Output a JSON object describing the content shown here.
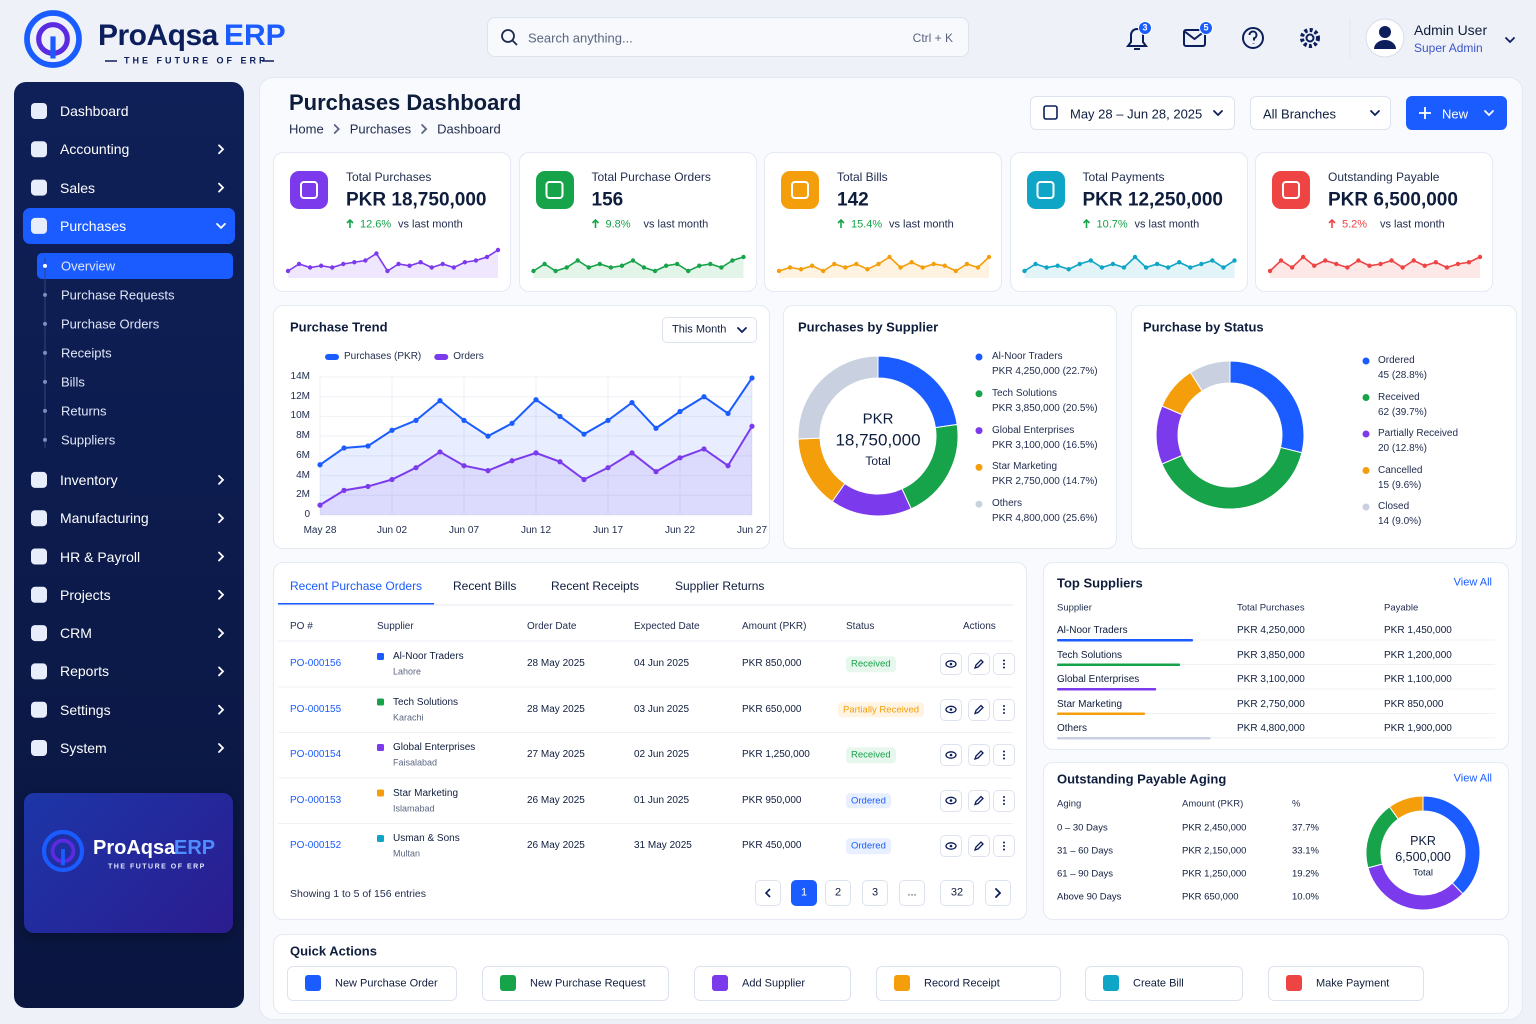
{
  "brand": {
    "name": "ProAqsa",
    "suffix": "ERP",
    "tagline": "THE FUTURE OF ERP"
  },
  "search": {
    "placeholder": "Search anything...",
    "shortcut": "Ctrl + K"
  },
  "header": {
    "notifications": 3,
    "messages": 5,
    "user": "Admin User",
    "role": "Super Admin"
  },
  "sidebar": {
    "items": [
      {
        "label": "Dashboard"
      },
      {
        "label": "Accounting",
        "submenu": true
      },
      {
        "label": "Sales",
        "submenu": true
      },
      {
        "label": "Purchases",
        "submenu": true,
        "active": true,
        "open": true,
        "children": [
          {
            "label": "Overview",
            "active": true
          },
          {
            "label": "Purchase Requests"
          },
          {
            "label": "Purchase Orders"
          },
          {
            "label": "Receipts"
          },
          {
            "label": "Bills"
          },
          {
            "label": "Returns"
          },
          {
            "label": "Suppliers"
          }
        ]
      },
      {
        "label": "Inventory",
        "submenu": true
      },
      {
        "label": "Manufacturing",
        "submenu": true
      },
      {
        "label": "HR & Payroll",
        "submenu": true
      },
      {
        "label": "Projects",
        "submenu": true
      },
      {
        "label": "CRM",
        "submenu": true
      },
      {
        "label": "Reports",
        "submenu": true
      },
      {
        "label": "Settings",
        "submenu": true
      },
      {
        "label": "System",
        "submenu": true
      }
    ]
  },
  "page": {
    "title": "Purchases Dashboard",
    "breadcrumb": [
      "Home",
      "Purchases",
      "Dashboard"
    ],
    "date_range": "May 28 – Jun 28, 2025",
    "branch": "All Branches",
    "new": "New"
  },
  "kpis": [
    {
      "label": "Total Purchases",
      "value": "PKR 18,750,000",
      "change": "12.6%",
      "compare": "vs last month",
      "color": "#7c3aed",
      "change_color": "#16a34a",
      "ylim": [
        0,
        10
      ],
      "trend": [
        2,
        4,
        3,
        3.5,
        3,
        4,
        4.5,
        5,
        7,
        2,
        4,
        3.5,
        4.5,
        3,
        4,
        3,
        4.5,
        5,
        6,
        8
      ]
    },
    {
      "label": "Total Purchase Orders",
      "value": "156",
      "change": "9.8%",
      "compare": "vs last month",
      "color": "#16a34a",
      "change_color": "#16a34a",
      "ylim": [
        0,
        10
      ],
      "trend": [
        2,
        4,
        2,
        3,
        5,
        3,
        4,
        3,
        3.5,
        5,
        3,
        2,
        3.5,
        4,
        2,
        3.5,
        4,
        3,
        5,
        6
      ]
    },
    {
      "label": "Total Bills",
      "value": "142",
      "change": "15.4%",
      "compare": "vs last month",
      "color": "#f59e0b",
      "change_color": "#16a34a",
      "ylim": [
        0,
        10
      ],
      "trend": [
        2,
        3,
        2.5,
        3.5,
        2,
        4,
        3,
        4,
        2.5,
        4,
        6,
        3,
        4.5,
        3,
        4,
        3.5,
        2,
        4,
        3,
        6
      ]
    },
    {
      "label": "Total Payments",
      "value": "PKR 12,250,000",
      "change": "10.7%",
      "compare": "vs last month",
      "color": "#0ea5c6",
      "change_color": "#16a34a",
      "ylim": [
        0,
        10
      ],
      "trend": [
        2,
        4,
        3,
        3.5,
        2.5,
        4,
        5,
        3,
        4,
        3,
        6,
        3,
        4,
        3,
        4.5,
        3,
        4,
        5,
        3,
        5
      ]
    },
    {
      "label": "Outstanding Payable",
      "value": "PKR 6,500,000",
      "change": "5.2%",
      "compare": "vs last month",
      "color": "#ef4444",
      "change_color": "#ef4444",
      "ylim": [
        0,
        10
      ],
      "trend": [
        2,
        5,
        3,
        6,
        3.5,
        5,
        4,
        3,
        5,
        3.5,
        4,
        5,
        3,
        5,
        3.5,
        4.5,
        3,
        4,
        4.5,
        6
      ]
    }
  ],
  "trend": {
    "type": "line",
    "title": "Purchase Trend",
    "period": "This Month",
    "categories": [
      "May 28",
      null,
      null,
      "Jun 02",
      null,
      null,
      "Jun 07",
      null,
      null,
      "Jun 12",
      null,
      null,
      "Jun 17",
      null,
      null,
      "Jun 22",
      null,
      null,
      "Jun 27"
    ],
    "series": [
      {
        "name": "Purchases (PKR)",
        "color": "#1a5cff",
        "values": [
          5.1,
          6.8,
          7.0,
          8.6,
          9.6,
          11.6,
          9.6,
          8.0,
          9.3,
          11.7,
          10.0,
          8.2,
          9.6,
          11.4,
          8.8,
          10.5,
          12.0,
          10.3,
          13.9
        ]
      },
      {
        "name": "Orders",
        "color": "#7c3aed",
        "values": [
          1.0,
          2.5,
          2.9,
          3.6,
          4.8,
          6.4,
          5.0,
          4.5,
          5.5,
          6.3,
          5.4,
          3.6,
          4.8,
          6.3,
          4.4,
          5.8,
          6.7,
          5.0,
          9.0
        ]
      }
    ],
    "ylim": [
      0,
      14
    ],
    "yticks": [
      0,
      {
        "value": 2,
        "label": "2M"
      },
      {
        "value": 4,
        "label": "4M"
      },
      {
        "value": 6,
        "label": "6M"
      },
      {
        "value": 8,
        "label": "8M"
      },
      {
        "value": 10,
        "label": "10M"
      },
      {
        "value": 12,
        "label": "12M"
      },
      {
        "value": 14,
        "label": "14M"
      }
    ],
    "grid": true
  },
  "supplier_chart": {
    "type": "pie",
    "title": "Purchases by Supplier",
    "center": [
      "PKR",
      "18,750,000",
      "Total"
    ],
    "items": [
      {
        "name": "Al-Noor Traders",
        "value": 22.7,
        "value_label": "PKR 4,250,000 (22.7%)",
        "color": "#1a5cff"
      },
      {
        "name": "Tech Solutions",
        "value": 20.5,
        "value_label": "PKR 3,850,000 (20.5%)",
        "color": "#16a34a"
      },
      {
        "name": "Global Enterprises",
        "value": 16.5,
        "value_label": "PKR 3,100,000 (16.5%)",
        "color": "#7c3aed"
      },
      {
        "name": "Star Marketing",
        "value": 14.7,
        "value_label": "PKR 2,750,000 (14.7%)",
        "color": "#f59e0b"
      },
      {
        "name": "Others",
        "value": 25.6,
        "value_label": "PKR 4,800,000 (25.6%)",
        "color": "#c9d1e0"
      }
    ]
  },
  "status_chart": {
    "type": "pie",
    "title": "Purchase by Status",
    "items": [
      {
        "name": "Ordered",
        "value": 45,
        "value_label": "45 (28.8%)",
        "color": "#1a5cff"
      },
      {
        "name": "Received",
        "value": 62,
        "value_label": "62 (39.7%)",
        "color": "#16a34a"
      },
      {
        "name": "Partially Received",
        "value": 20,
        "value_label": "20 (12.8%)",
        "color": "#7c3aed"
      },
      {
        "name": "Cancelled",
        "value": 15,
        "value_label": "15 (9.6%)",
        "color": "#f59e0b"
      },
      {
        "name": "Closed",
        "value": 14,
        "value_label": "14 (9.0%)",
        "color": "#c9d1e0"
      }
    ]
  },
  "orders": {
    "tabs": [
      {
        "label": "Recent Purchase Orders",
        "active": true
      },
      {
        "label": "Recent Bills"
      },
      {
        "label": "Recent Receipts"
      },
      {
        "label": "Supplier Returns"
      }
    ],
    "columns": [
      "PO #",
      "Supplier",
      "Order Date",
      "Expected Date",
      "Amount (PKR)",
      "Status",
      "Actions"
    ],
    "rows": [
      {
        "po": "PO-000156",
        "supplier": "Al-Noor Traders",
        "city": "Lahore",
        "color": "#1a5cff",
        "order_date": "28 May 2025",
        "expected": "04 Jun 2025",
        "amount": "PKR 850,000",
        "status": "Received",
        "status_color": "#16a34a",
        "status_bg": "#e7f7ed"
      },
      {
        "po": "PO-000155",
        "supplier": "Tech Solutions",
        "city": "Karachi",
        "color": "#16a34a",
        "order_date": "28 May 2025",
        "expected": "03 Jun 2025",
        "amount": "PKR 650,000",
        "status": "Partially Received",
        "status_color": "#f59e0b",
        "status_bg": "#fff4e2"
      },
      {
        "po": "PO-000154",
        "supplier": "Global Enterprises",
        "city": "Faisalabad",
        "color": "#7c3aed",
        "order_date": "27 May 2025",
        "expected": "02 Jun 2025",
        "amount": "PKR 1,250,000",
        "status": "Received",
        "status_color": "#16a34a",
        "status_bg": "#e7f7ed"
      },
      {
        "po": "PO-000153",
        "supplier": "Star Marketing",
        "city": "Islamabad",
        "color": "#f59e0b",
        "order_date": "26 May 2025",
        "expected": "01 Jun 2025",
        "amount": "PKR 950,000",
        "status": "Ordered",
        "status_color": "#1a5cff",
        "status_bg": "#e8efff"
      },
      {
        "po": "PO-000152",
        "supplier": "Usman & Sons",
        "city": "Multan",
        "color": "#0ea5c6",
        "order_date": "26 May 2025",
        "expected": "31 May 2025",
        "amount": "PKR 450,000",
        "status": "Ordered",
        "status_color": "#1a5cff",
        "status_bg": "#e8efff"
      }
    ],
    "showing": "Showing 1 to 5 of 156 entries",
    "pages": [
      {
        "label": "1",
        "active": true
      },
      {
        "label": "2"
      },
      {
        "label": "3"
      },
      {
        "label": "..."
      },
      {
        "label": "32"
      }
    ]
  },
  "top_suppliers": {
    "title": "Top Suppliers",
    "view_all": "View All",
    "columns": [
      "Supplier",
      "Total Purchases",
      "Payable"
    ],
    "xlim": [
      0,
      5000000
    ],
    "rows": [
      {
        "name": "Al-Noor Traders",
        "total": 4250000,
        "total_label": "PKR 4,250,000",
        "payable": "PKR 1,450,000",
        "color": "#1a5cff"
      },
      {
        "name": "Tech Solutions",
        "total": 3850000,
        "total_label": "PKR 3,850,000",
        "payable": "PKR 1,200,000",
        "color": "#16a34a"
      },
      {
        "name": "Global Enterprises",
        "total": 3100000,
        "total_label": "PKR 3,100,000",
        "payable": "PKR 1,100,000",
        "color": "#7c3aed"
      },
      {
        "name": "Star Marketing",
        "total": 2750000,
        "total_label": "PKR 2,750,000",
        "payable": "PKR 850,000",
        "color": "#f59e0b"
      },
      {
        "name": "Others",
        "total": 4800000,
        "total_label": "PKR 4,800,000",
        "payable": "PKR 1,900,000",
        "color": "#c9d1e0"
      }
    ]
  },
  "aging": {
    "type": "pie",
    "title": "Outstanding Payable Aging",
    "view_all": "View All",
    "columns": [
      "Aging",
      "Amount (PKR)",
      "%"
    ],
    "center": [
      "PKR",
      "6,500,000",
      "Total"
    ],
    "rows": [
      {
        "range": "0 – 30 Days",
        "amount": "PKR 2,450,000",
        "value": 37.7,
        "value_label": "37.7%",
        "color": "#1a5cff"
      },
      {
        "range": "31 – 60 Days",
        "amount": "PKR 2,150,000",
        "value": 33.1,
        "value_label": "33.1%",
        "color": "#7c3aed"
      },
      {
        "range": "61 – 90 Days",
        "amount": "PKR 1,250,000",
        "value": 19.2,
        "value_label": "19.2%",
        "color": "#16a34a"
      },
      {
        "range": "Above 90 Days",
        "amount": "PKR 650,000",
        "value": 10.0,
        "value_label": "10.0%",
        "color": "#f59e0b"
      }
    ]
  },
  "quick_actions": {
    "title": "Quick Actions",
    "items": [
      {
        "label": "New Purchase Order",
        "color": "#1a5cff"
      },
      {
        "label": "New Purchase Request",
        "color": "#16a34a"
      },
      {
        "label": "Add Supplier",
        "color": "#7c3aed"
      },
      {
        "label": "Record Receipt",
        "color": "#f59e0b"
      },
      {
        "label": "Create Bill",
        "color": "#0ea5c6"
      },
      {
        "label": "Make Payment",
        "color": "#ef4444"
      }
    ]
  }
}
